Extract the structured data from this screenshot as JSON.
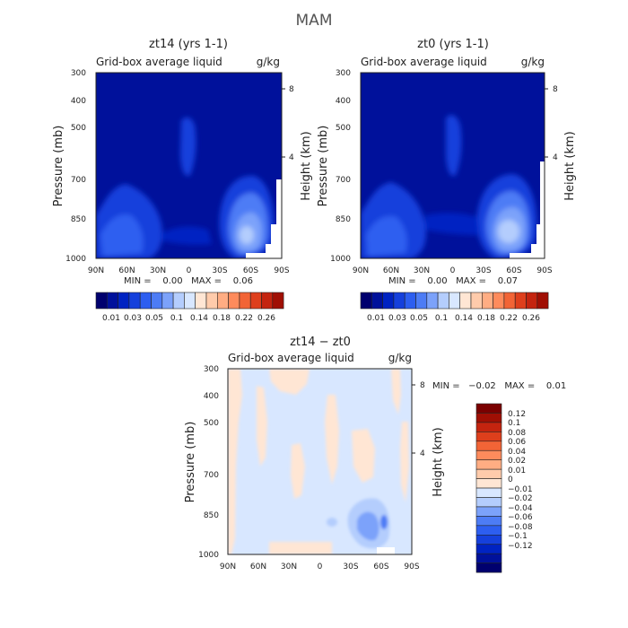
{
  "title": "MAM",
  "palette": {
    "blues": [
      "#00006e",
      "#00119b",
      "#0023c2",
      "#1540dc",
      "#2d5ef0",
      "#4d7cf5",
      "#7ca2fa",
      "#b4cdfd",
      "#d8e7ff"
    ],
    "reds": [
      "#ffe6d4",
      "#ffcbab",
      "#ffad83",
      "#fe8b5c",
      "#f26436",
      "#de3f1c",
      "#c4240f",
      "#a00f04",
      "#7a0000"
    ],
    "frame": "#222222"
  },
  "chart_data": [
    {
      "type": "heatmap",
      "title": "zt14 (yrs 1-1)",
      "subtitle": "Grid-box average liquid",
      "units": "g/kg",
      "ylabel": "Pressure (mb)",
      "y2label": "Height (km)",
      "x_ticks": [
        "90N",
        "60N",
        "30N",
        "0",
        "30S",
        "60S",
        "90S"
      ],
      "y_ticks": [
        "300",
        "400",
        "500",
        "700",
        "850",
        "1000"
      ],
      "y2_ticks": [
        "8",
        "4"
      ],
      "ylim": [
        1000,
        300
      ],
      "stats": "MIN =    0.00   MAX =    0.06",
      "min": 0.0,
      "max": 0.06,
      "colorbar_labels": [
        "0.01",
        "0.03",
        "0.05",
        "0.1",
        "0.14",
        "0.18",
        "0.22",
        "0.26"
      ]
    },
    {
      "type": "heatmap",
      "title": "zt0 (yrs 1-1)",
      "subtitle": "Grid-box average liquid",
      "units": "g/kg",
      "ylabel": "Pressure (mb)",
      "y2label": "Height (km)",
      "x_ticks": [
        "90N",
        "60N",
        "30N",
        "0",
        "30S",
        "60S",
        "90S"
      ],
      "y_ticks": [
        "300",
        "400",
        "500",
        "700",
        "850",
        "1000"
      ],
      "y2_ticks": [
        "8",
        "4"
      ],
      "ylim": [
        1000,
        300
      ],
      "stats": "MIN =    0.00   MAX =    0.07",
      "min": 0.0,
      "max": 0.07,
      "colorbar_labels": [
        "0.01",
        "0.03",
        "0.05",
        "0.1",
        "0.14",
        "0.18",
        "0.22",
        "0.26"
      ]
    },
    {
      "type": "heatmap",
      "title": "zt14 − zt0",
      "subtitle": "Grid-box average liquid",
      "units": "g/kg",
      "ylabel": "Pressure (mb)",
      "y2label": "Height (km)",
      "x_ticks": [
        "90N",
        "60N",
        "30N",
        "0",
        "30S",
        "60S",
        "90S"
      ],
      "y_ticks": [
        "300",
        "400",
        "500",
        "700",
        "850",
        "1000"
      ],
      "y2_ticks": [
        "8",
        "4"
      ],
      "ylim": [
        1000,
        300
      ],
      "stats": "MIN =   −0.02   MAX =    0.01",
      "min": -0.02,
      "max": 0.01,
      "colorbar_labels": [
        "0.12",
        "0.1",
        "0.08",
        "0.06",
        "0.04",
        "0.02",
        "0.01",
        "0",
        "−0.01",
        "−0.02",
        "−0.04",
        "−0.06",
        "−0.08",
        "−0.1",
        "−0.12"
      ]
    }
  ]
}
